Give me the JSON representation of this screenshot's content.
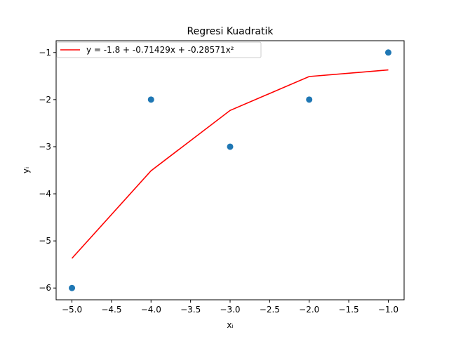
{
  "chart_data": {
    "type": "scatter",
    "title": "Regresi Kuadratik",
    "xlabel": "xᵢ",
    "ylabel": "yᵢ",
    "xlim": [
      -5.2,
      -0.8
    ],
    "ylim": [
      -6.25,
      -0.75
    ],
    "grid": false,
    "legend_position": "top-left",
    "x_ticks": [
      -5.0,
      -4.5,
      -4.0,
      -3.5,
      -3.0,
      -2.5,
      -2.0,
      -1.5,
      -1.0
    ],
    "x_tick_labels": [
      "−5.0",
      "−4.5",
      "−4.0",
      "−3.5",
      "−3.0",
      "−2.5",
      "−2.0",
      "−1.5",
      "−1.0"
    ],
    "y_ticks": [
      -6,
      -5,
      -4,
      -3,
      -2,
      -1
    ],
    "y_tick_labels": [
      "−6",
      "−5",
      "−4",
      "−3",
      "−2",
      "−1"
    ],
    "points": {
      "x": [
        -5,
        -4,
        -3,
        -2,
        -1
      ],
      "y": [
        -6,
        -2,
        -3,
        -2,
        -1
      ],
      "color": "#1f77b4"
    },
    "series": [
      {
        "name": "y = -1.8 + -0.71429x + -0.28571x²",
        "x": [
          -5,
          -4,
          -3,
          -2,
          -1
        ],
        "y": [
          -5.37,
          -3.51,
          -2.23,
          -1.51,
          -1.37
        ],
        "color": "#ff0000"
      }
    ]
  }
}
